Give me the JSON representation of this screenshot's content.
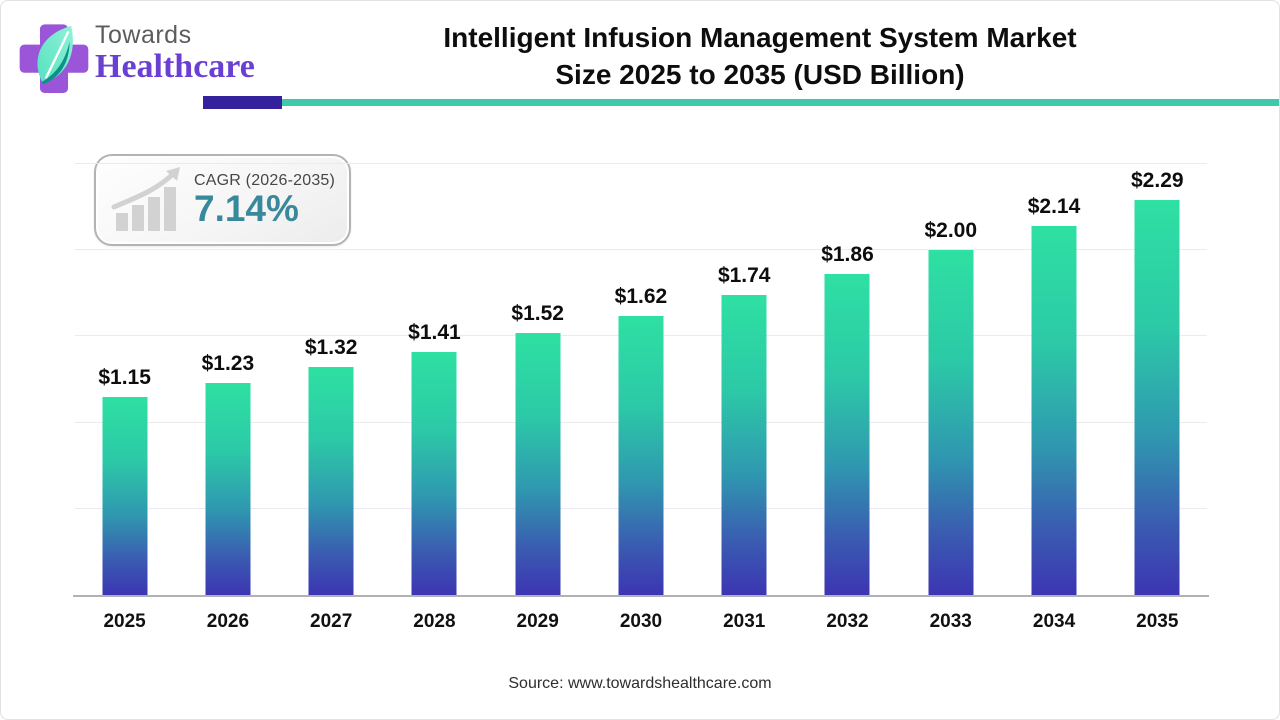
{
  "brand": {
    "towards": "Towards",
    "healthcare": "Healthcare"
  },
  "header": {
    "title_line1": "Intelligent Infusion Management System Market",
    "title_line2": "Size 2025 to 2035 (USD Billion)"
  },
  "cagr_badge": {
    "label": "CAGR (2026-2035)",
    "value": "7.14%"
  },
  "source": "Source: www.towardshealthcare.com",
  "colors": {
    "bar_top": "#2ee0a2",
    "bar_bottom": "#3c35b2",
    "rule_purple": "#34219c",
    "rule_teal": "#3fc9ab",
    "cagr_value": "#38899b",
    "logo_purple": "#9a55d8",
    "logo_text_purple": "#6a3fd4",
    "title_text": "#0d0d0d"
  },
  "chart_data": {
    "type": "bar",
    "title": "Intelligent Infusion Management System Market Size 2025 to 2035 (USD Billion)",
    "categories": [
      "2025",
      "2026",
      "2027",
      "2028",
      "2029",
      "2030",
      "2031",
      "2032",
      "2033",
      "2034",
      "2035"
    ],
    "values": [
      1.15,
      1.23,
      1.32,
      1.41,
      1.52,
      1.62,
      1.74,
      1.86,
      2.0,
      2.14,
      2.29
    ],
    "value_labels": [
      "$1.15",
      "$1.23",
      "$1.32",
      "$1.41",
      "$1.52",
      "$1.62",
      "$1.74",
      "$1.86",
      "$2.00",
      "$2.14",
      "$2.29"
    ],
    "xlabel": "",
    "ylabel": "USD Billion",
    "ylim": [
      0,
      2.5
    ],
    "gridline_step": 0.5,
    "grid": true,
    "legend": "none",
    "bar_gradient": [
      "#2ee0a2",
      "#3c35b2"
    ]
  }
}
